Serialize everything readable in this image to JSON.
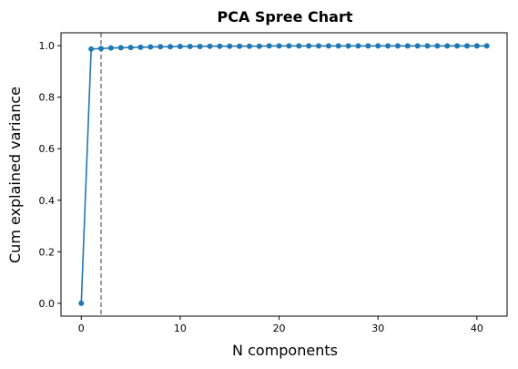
{
  "chart_data": {
    "type": "line",
    "title": "PCA Spree Chart",
    "xlabel": "N components",
    "ylabel": "Cum explained variance",
    "xlim": [
      -2.05,
      43.05
    ],
    "ylim": [
      -0.05,
      1.05
    ],
    "xticks": [
      0,
      10,
      20,
      30,
      40
    ],
    "yticks": [
      0.0,
      0.2,
      0.4,
      0.6,
      0.8,
      1.0
    ],
    "xtick_labels": [
      "0",
      "10",
      "20",
      "30",
      "40"
    ],
    "ytick_labels": [
      "0.0",
      "0.2",
      "0.4",
      "0.6",
      "0.8",
      "1.0"
    ],
    "grid": false,
    "series": [
      {
        "color": "#1f77b4",
        "marker": "circle",
        "x": [
          0,
          1,
          2,
          3,
          4,
          5,
          6,
          7,
          8,
          9,
          10,
          11,
          12,
          13,
          14,
          15,
          16,
          17,
          18,
          19,
          20,
          21,
          22,
          23,
          24,
          25,
          26,
          27,
          28,
          29,
          30,
          31,
          32,
          33,
          34,
          35,
          36,
          37,
          38,
          39,
          40,
          41
        ],
        "y": [
          0.0,
          0.987,
          0.989,
          0.991,
          0.992,
          0.993,
          0.994,
          0.995,
          0.996,
          0.996,
          0.997,
          0.997,
          0.997,
          0.998,
          0.998,
          0.998,
          0.998,
          0.998,
          0.998,
          0.999,
          0.999,
          0.999,
          0.999,
          0.999,
          0.999,
          0.999,
          0.999,
          0.999,
          0.999,
          0.999,
          0.999,
          0.999,
          0.999,
          0.999,
          0.999,
          0.999,
          0.999,
          0.999,
          0.999,
          0.999,
          0.999,
          0.999
        ]
      }
    ],
    "reference_line": {
      "orientation": "vertical",
      "x": 2,
      "style": "dashed",
      "color": "#7f7f7f"
    }
  }
}
